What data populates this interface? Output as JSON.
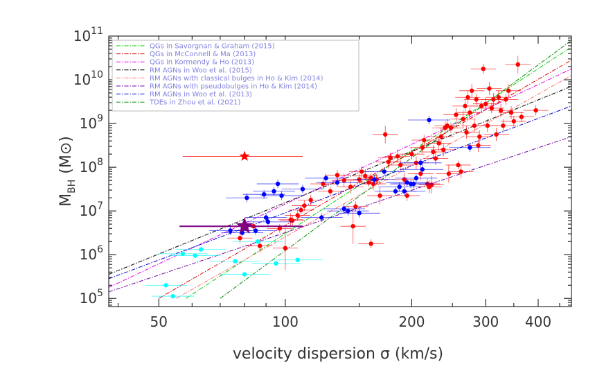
{
  "chart_data": {
    "type": "scatter",
    "x_scale": "log",
    "y_scale": "log",
    "xlim": [
      38,
      480
    ],
    "ylim": [
      65000,
      100000000000
    ],
    "xlabel": "velocity dispersion σ (km/s)",
    "ylabel_main": "M",
    "ylabel_sub": "BH",
    "ylabel_unit": "(M⊙)",
    "x_ticks": [
      {
        "v": 50,
        "label": "50"
      },
      {
        "v": 100,
        "label": "100"
      },
      {
        "v": 200,
        "label": "200"
      },
      {
        "v": 300,
        "label": "300"
      },
      {
        "v": 400,
        "label": "400"
      }
    ],
    "y_ticks": [
      {
        "e": 5,
        "base": "10",
        "exp": "5"
      },
      {
        "e": 6,
        "base": "10",
        "exp": "6"
      },
      {
        "e": 7,
        "base": "10",
        "exp": "7"
      },
      {
        "e": 8,
        "base": "10",
        "exp": "8"
      },
      {
        "e": 9,
        "base": "10",
        "exp": "9"
      },
      {
        "e": 10,
        "base": "10",
        "exp": "10"
      },
      {
        "e": 11,
        "base": "10",
        "exp": "11"
      }
    ],
    "legend_position": "top-left",
    "legend": [
      {
        "name": "QGs in Savorgnan & Graham (2015)",
        "color": "#00cc00"
      },
      {
        "name": "QGs in McConnell & Ma (2013)",
        "color": "#e00000"
      },
      {
        "name": "QGs in Kormendy & Ho (2013)",
        "color": "#e000e0"
      },
      {
        "name": "RM AGNs in Woo et al. (2015)",
        "color": "#000000"
      },
      {
        "name": "RM AGNs with classical bulges in Ho & Kim (2014)",
        "color": "#ff7070"
      },
      {
        "name": "RM AGNs with pseudobulges in Ho & Kim (2014)",
        "color": "#7000a0"
      },
      {
        "name": "RM AGNs in Woo et al. (2013)",
        "color": "#0000d0"
      },
      {
        "name": "TDEs in Zhou et al. (2021)",
        "color": "#008800"
      }
    ],
    "relations": [
      {
        "color": "#00cc00",
        "x": [
          58,
          480
        ],
        "y": [
          5.0,
          10.75
        ]
      },
      {
        "color": "#e00000",
        "x": [
          50,
          480
        ],
        "y": [
          5.0,
          10.45
        ]
      },
      {
        "color": "#e000e0",
        "x": [
          38,
          480
        ],
        "y": [
          5.25,
          10.25
        ]
      },
      {
        "color": "#000000",
        "x": [
          38,
          480
        ],
        "y": [
          5.55,
          9.85
        ]
      },
      {
        "color": "#ff7070",
        "x": [
          55,
          480
        ],
        "y": [
          5.0,
          10.1
        ]
      },
      {
        "color": "#7000a0",
        "x": [
          38,
          480
        ],
        "y": [
          5.15,
          8.7
        ]
      },
      {
        "color": "#0000d0",
        "x": [
          38,
          480
        ],
        "y": [
          5.45,
          9.4
        ]
      },
      {
        "color": "#008800",
        "x": [
          70,
          480
        ],
        "y": [
          5.0,
          10.9
        ]
      }
    ],
    "series": [
      {
        "name": "red",
        "color": "#ff0000",
        "points": [
          {
            "x": 78,
            "y": 6.38,
            "xerr": 0.03,
            "yerr": 0.12
          },
          {
            "x": 84,
            "y": 6.65,
            "xerr": 0.03,
            "yerr": 0.1
          },
          {
            "x": 87,
            "y": 6.2,
            "xerr": 0.03,
            "yerr": 0.15
          },
          {
            "x": 97,
            "y": 6.6,
            "xerr": 0.03,
            "yerr": 0.1
          },
          {
            "x": 100,
            "y": 6.15,
            "xerr": 0.03,
            "yerr": 0.5
          },
          {
            "x": 103,
            "y": 6.8,
            "xerr": 0.03,
            "yerr": 0.15
          },
          {
            "x": 104,
            "y": 6.78,
            "xerr": 0.03,
            "yerr": 0.12
          },
          {
            "x": 107,
            "y": 6.9,
            "xerr": 0.03,
            "yerr": 0.12
          },
          {
            "x": 109,
            "y": 7.02,
            "xerr": 0.03,
            "yerr": 0.1
          },
          {
            "x": 111,
            "y": 7.12,
            "xerr": 0.03,
            "yerr": 0.12
          },
          {
            "x": 115,
            "y": 7.25,
            "xerr": 0.03,
            "yerr": 0.12
          },
          {
            "x": 123,
            "y": 7.62,
            "xerr": 0.03,
            "yerr": 0.12
          },
          {
            "x": 128,
            "y": 7.45,
            "xerr": 0.03,
            "yerr": 0.1
          },
          {
            "x": 133,
            "y": 7.82,
            "xerr": 0.03,
            "yerr": 0.12
          },
          {
            "x": 138,
            "y": 7.7,
            "xerr": 0.03,
            "yerr": 0.15
          },
          {
            "x": 143,
            "y": 7.55,
            "xerr": 0.03,
            "yerr": 0.15
          },
          {
            "x": 145,
            "y": 6.65,
            "xerr": 0.03,
            "yerr": 0.4
          },
          {
            "x": 147,
            "y": 7.1,
            "xerr": 0.03,
            "yerr": 0.12
          },
          {
            "x": 150,
            "y": 7.72,
            "xerr": 0.03,
            "yerr": 0.12
          },
          {
            "x": 152,
            "y": 7.9,
            "xerr": 0.03,
            "yerr": 0.12
          },
          {
            "x": 155,
            "y": 7.8,
            "xerr": 0.03,
            "yerr": 0.1
          },
          {
            "x": 158,
            "y": 7.65,
            "xerr": 0.03,
            "yerr": 0.1
          },
          {
            "x": 160,
            "y": 7.75,
            "xerr": 0.03,
            "yerr": 0.12
          },
          {
            "x": 162,
            "y": 7.62,
            "xerr": 0.03,
            "yerr": 0.15
          },
          {
            "x": 165,
            "y": 7.72,
            "xerr": 0.03,
            "yerr": 0.12
          },
          {
            "x": 160,
            "y": 6.25,
            "xerr": 0.03,
            "yerr": 0.1
          },
          {
            "x": 168,
            "y": 7.35,
            "xerr": 0.03,
            "yerr": 0.2
          },
          {
            "x": 173,
            "y": 8.75,
            "xerr": 0.03,
            "yerr": 0.2
          },
          {
            "x": 176,
            "y": 8.12,
            "xerr": 0.03,
            "yerr": 0.15
          },
          {
            "x": 178,
            "y": 8.22,
            "xerr": 0.03,
            "yerr": 0.12
          },
          {
            "x": 185,
            "y": 8.25,
            "xerr": 0.03,
            "yerr": 0.15
          },
          {
            "x": 188,
            "y": 8.05,
            "xerr": 0.03,
            "yerr": 0.12
          },
          {
            "x": 192,
            "y": 7.72,
            "xerr": 0.03,
            "yerr": 0.15
          },
          {
            "x": 195,
            "y": 7.35,
            "xerr": 0.03,
            "yerr": 0.12
          },
          {
            "x": 200,
            "y": 8.3,
            "xerr": 0.03,
            "yerr": 0.12
          },
          {
            "x": 205,
            "y": 8.1,
            "xerr": 0.03,
            "yerr": 0.15
          },
          {
            "x": 210,
            "y": 7.85,
            "xerr": 0.03,
            "yerr": 0.15
          },
          {
            "x": 212,
            "y": 8.45,
            "xerr": 0.03,
            "yerr": 0.12
          },
          {
            "x": 214,
            "y": 8.62,
            "xerr": 0.03,
            "yerr": 0.12
          },
          {
            "x": 218,
            "y": 7.62,
            "xerr": 0.03,
            "yerr": 0.12
          },
          {
            "x": 220,
            "y": 7.55,
            "xerr": 0.03,
            "yerr": 0.15
          },
          {
            "x": 223,
            "y": 7.6,
            "xerr": 0.03,
            "yerr": 0.2
          },
          {
            "x": 225,
            "y": 8.35,
            "xerr": 0.03,
            "yerr": 0.15
          },
          {
            "x": 228,
            "y": 8.2,
            "xerr": 0.03,
            "yerr": 0.15
          },
          {
            "x": 232,
            "y": 8.55,
            "xerr": 0.03,
            "yerr": 0.15
          },
          {
            "x": 235,
            "y": 8.7,
            "xerr": 0.03,
            "yerr": 0.2
          },
          {
            "x": 238,
            "y": 8.4,
            "xerr": 0.03,
            "yerr": 0.15
          },
          {
            "x": 240,
            "y": 8.9,
            "xerr": 0.03,
            "yerr": 0.15
          },
          {
            "x": 243,
            "y": 8.95,
            "xerr": 0.03,
            "yerr": 0.15
          },
          {
            "x": 245,
            "y": 7.85,
            "xerr": 0.03,
            "yerr": 0.2
          },
          {
            "x": 248,
            "y": 8.9,
            "xerr": 0.03,
            "yerr": 0.12
          },
          {
            "x": 255,
            "y": 9.2,
            "xerr": 0.03,
            "yerr": 0.15
          },
          {
            "x": 258,
            "y": 8.05,
            "xerr": 0.03,
            "yerr": 0.1
          },
          {
            "x": 262,
            "y": 7.9,
            "xerr": 0.03,
            "yerr": 0.15
          },
          {
            "x": 265,
            "y": 9.1,
            "xerr": 0.03,
            "yerr": 0.2
          },
          {
            "x": 268,
            "y": 9.4,
            "xerr": 0.03,
            "yerr": 0.15
          },
          {
            "x": 270,
            "y": 8.8,
            "xerr": 0.03,
            "yerr": 0.15
          },
          {
            "x": 272,
            "y": 9.6,
            "xerr": 0.03,
            "yerr": 0.15
          },
          {
            "x": 275,
            "y": 9.25,
            "xerr": 0.03,
            "yerr": 0.12
          },
          {
            "x": 278,
            "y": 9.75,
            "xerr": 0.03,
            "yerr": 0.15
          },
          {
            "x": 282,
            "y": 8.95,
            "xerr": 0.03,
            "yerr": 0.15
          },
          {
            "x": 285,
            "y": 9.55,
            "xerr": 0.03,
            "yerr": 0.12
          },
          {
            "x": 288,
            "y": 8.5,
            "xerr": 0.03,
            "yerr": 0.15
          },
          {
            "x": 290,
            "y": 8.7,
            "xerr": 0.03,
            "yerr": 0.15
          },
          {
            "x": 293,
            "y": 9.4,
            "xerr": 0.03,
            "yerr": 0.12
          },
          {
            "x": 296,
            "y": 10.25,
            "xerr": 0.03,
            "yerr": 0.12
          },
          {
            "x": 300,
            "y": 9.45,
            "xerr": 0.03,
            "yerr": 0.15
          },
          {
            "x": 303,
            "y": 8.95,
            "xerr": 0.03,
            "yerr": 0.15
          },
          {
            "x": 306,
            "y": 9.8,
            "xerr": 0.03,
            "yerr": 0.15
          },
          {
            "x": 310,
            "y": 9.35,
            "xerr": 0.03,
            "yerr": 0.12
          },
          {
            "x": 313,
            "y": 9.55,
            "xerr": 0.03,
            "yerr": 0.15
          },
          {
            "x": 318,
            "y": 8.75,
            "xerr": 0.03,
            "yerr": 0.15
          },
          {
            "x": 322,
            "y": 9.6,
            "xerr": 0.03,
            "yerr": 0.15
          },
          {
            "x": 326,
            "y": 9.3,
            "xerr": 0.03,
            "yerr": 0.15
          },
          {
            "x": 330,
            "y": 8.95,
            "xerr": 0.03,
            "yerr": 0.15
          },
          {
            "x": 335,
            "y": 9.55,
            "xerr": 0.03,
            "yerr": 0.12
          },
          {
            "x": 340,
            "y": 9.75,
            "xerr": 0.03,
            "yerr": 0.15
          },
          {
            "x": 345,
            "y": 9.25,
            "xerr": 0.03,
            "yerr": 0.15
          },
          {
            "x": 350,
            "y": 9.05,
            "xerr": 0.03,
            "yerr": 0.12
          },
          {
            "x": 358,
            "y": 10.35,
            "xerr": 0.03,
            "yerr": 0.2
          },
          {
            "x": 365,
            "y": 9.15,
            "xerr": 0.03,
            "yerr": 0.12
          },
          {
            "x": 395,
            "y": 9.3,
            "xerr": 0.03,
            "yerr": 0.12
          }
        ]
      },
      {
        "name": "blue",
        "color": "#0000ff",
        "points": [
          {
            "x": 74,
            "y": 6.55,
            "xerr": 0.05,
            "yerr": 0.1
          },
          {
            "x": 79,
            "y": 6.5,
            "xerr": 0.05,
            "yerr": 0.08
          },
          {
            "x": 81,
            "y": 7.3,
            "xerr": 0.05,
            "yerr": 0.1
          },
          {
            "x": 85,
            "y": 6.55,
            "xerr": 0.05,
            "yerr": 0.1
          },
          {
            "x": 89,
            "y": 7.38,
            "xerr": 0.05,
            "yerr": 0.1
          },
          {
            "x": 90,
            "y": 6.85,
            "xerr": 0.05,
            "yerr": 0.1
          },
          {
            "x": 91,
            "y": 6.75,
            "xerr": 0.06,
            "yerr": 0.1
          },
          {
            "x": 94,
            "y": 7.45,
            "xerr": 0.05,
            "yerr": 0.1
          },
          {
            "x": 96,
            "y": 7.62,
            "xerr": 0.05,
            "yerr": 0.1
          },
          {
            "x": 98,
            "y": 7.35,
            "xerr": 0.05,
            "yerr": 0.1
          },
          {
            "x": 110,
            "y": 7.5,
            "xerr": 0.05,
            "yerr": 0.1
          },
          {
            "x": 122,
            "y": 6.85,
            "xerr": 0.05,
            "yerr": 0.1
          },
          {
            "x": 125,
            "y": 7.75,
            "xerr": 0.05,
            "yerr": 0.1
          },
          {
            "x": 133,
            "y": 7.65,
            "xerr": 0.05,
            "yerr": 0.1
          },
          {
            "x": 138,
            "y": 7.05,
            "xerr": 0.05,
            "yerr": 0.1
          },
          {
            "x": 141,
            "y": 7.0,
            "xerr": 0.05,
            "yerr": 0.1
          },
          {
            "x": 150,
            "y": 6.95,
            "xerr": 0.05,
            "yerr": 0.1
          },
          {
            "x": 163,
            "y": 7.72,
            "xerr": 0.05,
            "yerr": 0.1
          },
          {
            "x": 172,
            "y": 7.9,
            "xerr": 0.05,
            "yerr": 0.1
          },
          {
            "x": 183,
            "y": 7.45,
            "xerr": 0.05,
            "yerr": 0.1
          },
          {
            "x": 187,
            "y": 7.55,
            "xerr": 0.05,
            "yerr": 0.1
          },
          {
            "x": 192,
            "y": 7.45,
            "xerr": 0.05,
            "yerr": 0.1
          },
          {
            "x": 195,
            "y": 7.65,
            "xerr": 0.05,
            "yerr": 0.1
          },
          {
            "x": 199,
            "y": 7.62,
            "xerr": 0.05,
            "yerr": 0.1
          },
          {
            "x": 202,
            "y": 7.62,
            "xerr": 0.05,
            "yerr": 0.1
          },
          {
            "x": 205,
            "y": 7.75,
            "xerr": 0.05,
            "yerr": 0.1
          },
          {
            "x": 210,
            "y": 8.1,
            "xerr": 0.05,
            "yerr": 0.1
          },
          {
            "x": 212,
            "y": 7.95,
            "xerr": 0.05,
            "yerr": 0.1
          },
          {
            "x": 220,
            "y": 9.08,
            "xerr": 0.05,
            "yerr": 0.1
          },
          {
            "x": 275,
            "y": 8.45,
            "xerr": 0.05,
            "yerr": 0.1
          }
        ]
      },
      {
        "name": "cyan",
        "color": "#00ffff",
        "points": [
          {
            "x": 52,
            "y": 5.3,
            "xerr": 0.05,
            "yerr": 0.05
          },
          {
            "x": 54,
            "y": 5.05,
            "xerr": 0.05,
            "yerr": 0.05
          },
          {
            "x": 57,
            "y": 6.02,
            "xerr": 0.06,
            "yerr": 0.05
          },
          {
            "x": 61,
            "y": 5.98,
            "xerr": 0.06,
            "yerr": 0.05
          },
          {
            "x": 63,
            "y": 6.12,
            "xerr": 0.06,
            "yerr": 0.05
          },
          {
            "x": 76,
            "y": 5.85,
            "xerr": 0.06,
            "yerr": 0.05
          },
          {
            "x": 80,
            "y": 5.55,
            "xerr": 0.06,
            "yerr": 0.05
          },
          {
            "x": 86,
            "y": 6.3,
            "xerr": 0.06,
            "yerr": 0.05
          },
          {
            "x": 95,
            "y": 5.8,
            "xerr": 0.06,
            "yerr": 0.05
          },
          {
            "x": 107,
            "y": 5.88,
            "xerr": 0.06,
            "yerr": 0.05
          }
        ]
      }
    ],
    "special_markers": [
      {
        "name": "red-star",
        "x": 80,
        "y": 8.25,
        "color": "#ff0000",
        "xmin": 57,
        "xmax": 110,
        "size": 8
      },
      {
        "name": "purple-star",
        "x": 80,
        "y": 6.65,
        "color": "#800080",
        "xmin": 56,
        "xmax": 110,
        "size": 13
      }
    ]
  }
}
